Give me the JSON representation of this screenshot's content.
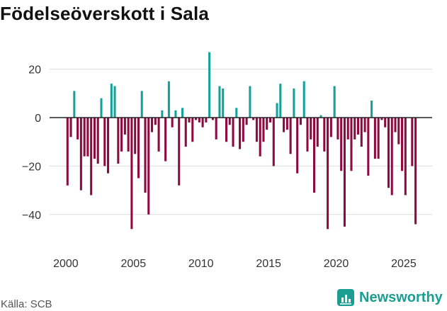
{
  "title": "Födelseöverskott i Sala",
  "source": "Källa: SCB",
  "brand": "Newsworthy",
  "colors": {
    "positive": "#13a19a",
    "negative": "#8c0a3f",
    "grid": "#dddddd",
    "zero": "#222222",
    "brand": "#1a9e92"
  },
  "chart_data": {
    "type": "bar",
    "title": "Födelseöverskott i Sala",
    "xlabel": "",
    "ylabel": "",
    "ylim": [
      -50,
      30
    ],
    "xlim": [
      1998.8,
      2027.1
    ],
    "yticks": [
      20,
      0,
      -20,
      -40
    ],
    "ytick_labels": [
      "20",
      "0",
      "−20",
      "−40"
    ],
    "xticks": [
      2000,
      2005,
      2010,
      2015,
      2020,
      2025
    ],
    "bar_width": 0.16,
    "x": [
      2000.125,
      2000.375,
      2000.625,
      2000.875,
      2001.125,
      2001.375,
      2001.625,
      2001.875,
      2002.125,
      2002.375,
      2002.625,
      2002.875,
      2003.125,
      2003.375,
      2003.625,
      2003.875,
      2004.125,
      2004.375,
      2004.625,
      2004.875,
      2005.125,
      2005.375,
      2005.625,
      2005.875,
      2006.125,
      2006.375,
      2006.625,
      2006.875,
      2007.125,
      2007.375,
      2007.625,
      2007.875,
      2008.125,
      2008.375,
      2008.625,
      2008.875,
      2009.125,
      2009.375,
      2009.625,
      2009.875,
      2010.125,
      2010.375,
      2010.625,
      2010.875,
      2011.125,
      2011.375,
      2011.625,
      2011.875,
      2012.125,
      2012.375,
      2012.625,
      2012.875,
      2013.125,
      2013.375,
      2013.625,
      2013.875,
      2014.125,
      2014.375,
      2014.625,
      2014.875,
      2015.125,
      2015.375,
      2015.625,
      2015.875,
      2016.125,
      2016.375,
      2016.625,
      2016.875,
      2017.125,
      2017.375,
      2017.625,
      2017.875,
      2018.125,
      2018.375,
      2018.625,
      2018.875,
      2019.125,
      2019.375,
      2019.625,
      2019.875,
      2020.125,
      2020.375,
      2020.625,
      2020.875,
      2021.125,
      2021.375,
      2021.625,
      2021.875,
      2022.125,
      2022.375,
      2022.625,
      2022.875,
      2023.125,
      2023.375,
      2023.625,
      2023.875,
      2024.125,
      2024.375,
      2024.625,
      2024.875,
      2025.125,
      2025.375,
      2025.625,
      2025.875
    ],
    "values": [
      -28,
      -8,
      11,
      -9,
      -30,
      -16,
      -16,
      -32,
      -17,
      -19,
      8,
      -20,
      -23,
      14,
      13,
      -19,
      -14,
      -7,
      -14,
      -46,
      -15,
      -25,
      11,
      -31,
      -40,
      -6,
      -3,
      -14,
      3,
      -18,
      15,
      -4,
      3,
      -28,
      4,
      -12,
      -2,
      -10,
      -1,
      -2,
      -4,
      -2,
      27,
      -1,
      -9,
      13,
      12,
      -10,
      -3,
      -12,
      4,
      -13,
      -10,
      -3,
      13,
      -1,
      -10,
      -16,
      -10,
      -5,
      -2,
      -20,
      6,
      14,
      -6,
      -5,
      -15,
      12,
      -23,
      -3,
      15,
      -14,
      -9,
      -31,
      -12,
      1,
      -14,
      -46,
      -8,
      13,
      -9,
      -22,
      -45,
      -9,
      -22,
      -9,
      -7,
      -12,
      -6,
      -24,
      7,
      -17,
      -17,
      -1,
      -4,
      -29,
      -32,
      -6,
      -11,
      -22,
      -32,
      0,
      -20,
      -44
    ]
  }
}
